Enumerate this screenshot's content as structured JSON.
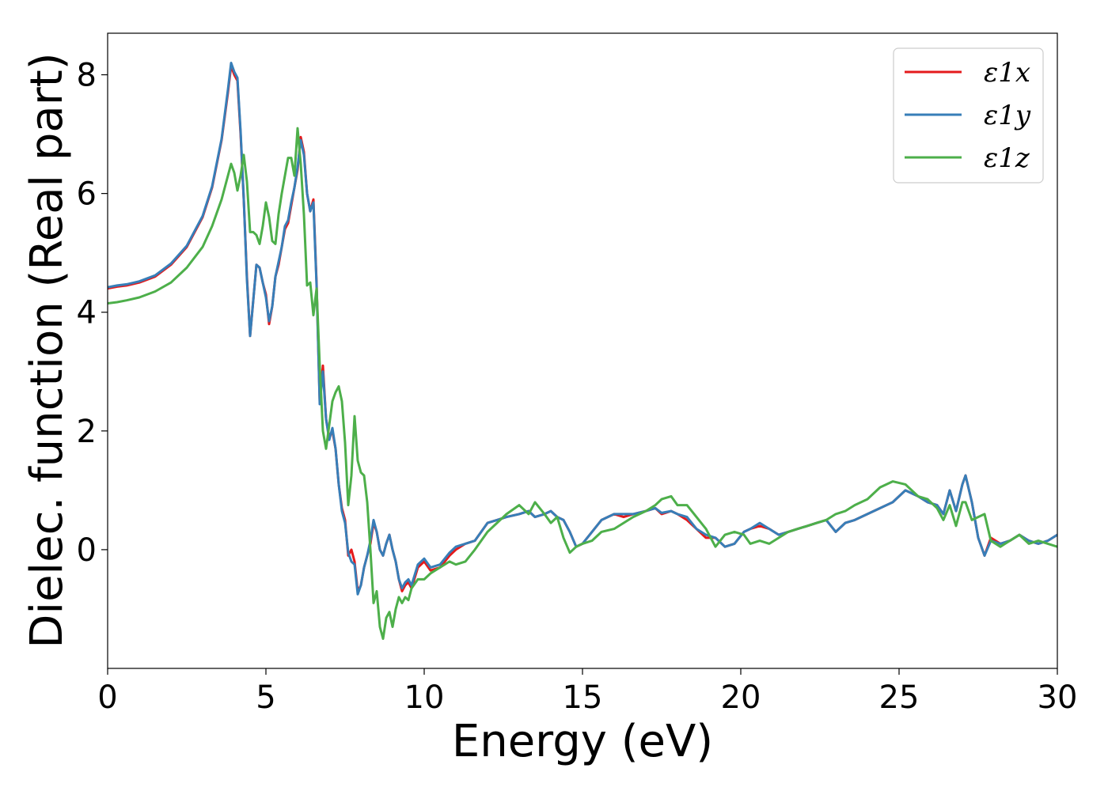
{
  "chart_data": {
    "type": "line",
    "xlabel": "Energy (eV)",
    "ylabel": "Dielec. function (Real part)",
    "xlim": [
      0,
      30
    ],
    "ylim": [
      -2.0,
      8.7
    ],
    "xticks": [
      "0",
      "5",
      "10",
      "15",
      "20",
      "25",
      "30"
    ],
    "yticks": [
      "0",
      "2",
      "4",
      "6",
      "8"
    ],
    "grid": false,
    "legend_position": "top-right",
    "series": [
      {
        "name": "ε1x",
        "color": "#e41a1c",
        "x": [
          0,
          0.3,
          0.6,
          1.0,
          1.5,
          2.0,
          2.5,
          3.0,
          3.3,
          3.6,
          3.8,
          3.9,
          4.0,
          4.1,
          4.2,
          4.3,
          4.4,
          4.5,
          4.6,
          4.7,
          4.8,
          4.9,
          5.0,
          5.1,
          5.2,
          5.3,
          5.4,
          5.5,
          5.6,
          5.7,
          5.8,
          5.9,
          6.0,
          6.1,
          6.2,
          6.3,
          6.4,
          6.5,
          6.6,
          6.7,
          6.8,
          6.9,
          7.0,
          7.1,
          7.2,
          7.3,
          7.4,
          7.5,
          7.6,
          7.7,
          7.8,
          7.9,
          8.0,
          8.1,
          8.2,
          8.3,
          8.4,
          8.5,
          8.6,
          8.7,
          8.8,
          8.9,
          9.0,
          9.1,
          9.2,
          9.3,
          9.4,
          9.5,
          9.6,
          9.8,
          10.0,
          10.2,
          10.5,
          10.8,
          11.0,
          11.3,
          11.6,
          12.0,
          12.3,
          12.6,
          13.0,
          13.3,
          13.5,
          13.8,
          14.0,
          14.2,
          14.4,
          14.6,
          14.8,
          15.0,
          15.3,
          15.6,
          16.0,
          16.3,
          16.6,
          17.0,
          17.3,
          17.5,
          17.8,
          18.0,
          18.3,
          18.6,
          18.9,
          19.2,
          19.5,
          19.8,
          20.1,
          20.3,
          20.6,
          20.9,
          21.2,
          21.5,
          21.8,
          22.1,
          22.4,
          22.7,
          23.0,
          23.3,
          23.6,
          24.0,
          24.4,
          24.8,
          25.2,
          25.6,
          25.9,
          26.2,
          26.4,
          26.6,
          26.8,
          27.0,
          27.1,
          27.3,
          27.5,
          27.7,
          27.9,
          28.2,
          28.5,
          28.8,
          29.1,
          29.4,
          29.7,
          30.0
        ],
        "y": [
          4.4,
          4.43,
          4.45,
          4.5,
          4.6,
          4.8,
          5.1,
          5.6,
          6.1,
          6.9,
          7.7,
          8.15,
          8.0,
          7.9,
          7.0,
          5.9,
          4.6,
          3.6,
          4.2,
          4.8,
          4.75,
          4.5,
          4.3,
          3.8,
          4.1,
          4.6,
          4.8,
          5.1,
          5.4,
          5.5,
          5.8,
          6.1,
          6.4,
          6.95,
          6.7,
          6.0,
          5.7,
          5.9,
          4.5,
          2.5,
          3.1,
          2.2,
          1.9,
          2.0,
          1.7,
          1.1,
          0.7,
          0.5,
          -0.1,
          0.0,
          -0.2,
          -0.7,
          -0.6,
          -0.3,
          -0.1,
          0.1,
          0.45,
          0.3,
          0.0,
          -0.1,
          0.1,
          0.25,
          0.0,
          -0.2,
          -0.5,
          -0.7,
          -0.6,
          -0.55,
          -0.65,
          -0.3,
          -0.2,
          -0.35,
          -0.3,
          -0.1,
          0.0,
          0.1,
          0.15,
          0.45,
          0.5,
          0.55,
          0.6,
          0.65,
          0.55,
          0.6,
          0.65,
          0.55,
          0.5,
          0.3,
          0.05,
          0.1,
          0.3,
          0.5,
          0.6,
          0.55,
          0.6,
          0.65,
          0.7,
          0.6,
          0.65,
          0.6,
          0.5,
          0.35,
          0.2,
          0.2,
          0.05,
          0.1,
          0.3,
          0.35,
          0.4,
          0.35,
          0.25,
          0.3,
          0.35,
          0.4,
          0.45,
          0.5,
          0.3,
          0.45,
          0.5,
          0.6,
          0.7,
          0.8,
          1.0,
          0.9,
          0.8,
          0.75,
          0.6,
          1.0,
          0.65,
          1.1,
          1.25,
          0.8,
          0.2,
          -0.1,
          0.2,
          0.1,
          0.15,
          0.25,
          0.15,
          0.1,
          0.15,
          0.25
        ]
      },
      {
        "name": "ε1y",
        "color": "#377eb8",
        "x": [
          0,
          0.3,
          0.6,
          1.0,
          1.5,
          2.0,
          2.5,
          3.0,
          3.3,
          3.6,
          3.8,
          3.9,
          4.0,
          4.1,
          4.2,
          4.3,
          4.4,
          4.5,
          4.6,
          4.7,
          4.8,
          4.9,
          5.0,
          5.1,
          5.2,
          5.3,
          5.4,
          5.5,
          5.6,
          5.7,
          5.8,
          5.9,
          6.0,
          6.1,
          6.2,
          6.3,
          6.4,
          6.5,
          6.6,
          6.7,
          6.8,
          6.9,
          7.0,
          7.1,
          7.2,
          7.3,
          7.4,
          7.5,
          7.6,
          7.7,
          7.8,
          7.9,
          8.0,
          8.1,
          8.2,
          8.3,
          8.4,
          8.5,
          8.6,
          8.7,
          8.8,
          8.9,
          9.0,
          9.1,
          9.2,
          9.3,
          9.4,
          9.5,
          9.6,
          9.8,
          10.0,
          10.2,
          10.5,
          10.8,
          11.0,
          11.3,
          11.6,
          12.0,
          12.3,
          12.6,
          13.0,
          13.3,
          13.5,
          13.8,
          14.0,
          14.2,
          14.4,
          14.6,
          14.8,
          15.0,
          15.3,
          15.6,
          16.0,
          16.3,
          16.6,
          17.0,
          17.3,
          17.5,
          17.8,
          18.0,
          18.3,
          18.6,
          18.9,
          19.2,
          19.5,
          19.8,
          20.1,
          20.3,
          20.6,
          20.9,
          21.2,
          21.5,
          21.8,
          22.1,
          22.4,
          22.7,
          23.0,
          23.3,
          23.6,
          24.0,
          24.4,
          24.8,
          25.2,
          25.6,
          25.9,
          26.2,
          26.4,
          26.6,
          26.8,
          27.0,
          27.1,
          27.3,
          27.5,
          27.7,
          27.9,
          28.2,
          28.5,
          28.8,
          29.1,
          29.4,
          29.7,
          30.0
        ],
        "y": [
          4.42,
          4.45,
          4.47,
          4.52,
          4.62,
          4.82,
          5.12,
          5.62,
          6.12,
          6.92,
          7.75,
          8.2,
          8.05,
          7.95,
          7.05,
          5.9,
          4.55,
          3.6,
          4.2,
          4.8,
          4.75,
          4.5,
          4.25,
          3.85,
          4.1,
          4.6,
          4.85,
          5.1,
          5.45,
          5.55,
          5.85,
          6.1,
          6.45,
          6.9,
          6.65,
          6.0,
          5.7,
          5.85,
          4.45,
          2.45,
          3.0,
          2.2,
          1.85,
          2.05,
          1.7,
          1.1,
          0.65,
          0.45,
          -0.05,
          -0.2,
          -0.25,
          -0.75,
          -0.6,
          -0.3,
          -0.1,
          0.15,
          0.5,
          0.3,
          0.0,
          -0.1,
          0.1,
          0.25,
          0.0,
          -0.2,
          -0.5,
          -0.65,
          -0.55,
          -0.5,
          -0.6,
          -0.25,
          -0.15,
          -0.3,
          -0.25,
          -0.05,
          0.05,
          0.1,
          0.15,
          0.45,
          0.5,
          0.55,
          0.6,
          0.65,
          0.55,
          0.6,
          0.65,
          0.55,
          0.5,
          0.3,
          0.05,
          0.1,
          0.3,
          0.5,
          0.6,
          0.6,
          0.6,
          0.65,
          0.7,
          0.62,
          0.65,
          0.6,
          0.55,
          0.35,
          0.25,
          0.2,
          0.05,
          0.1,
          0.3,
          0.35,
          0.45,
          0.35,
          0.25,
          0.3,
          0.35,
          0.4,
          0.45,
          0.5,
          0.3,
          0.45,
          0.5,
          0.6,
          0.7,
          0.8,
          1.0,
          0.9,
          0.8,
          0.75,
          0.6,
          1.0,
          0.65,
          1.1,
          1.25,
          0.8,
          0.2,
          -0.1,
          0.15,
          0.1,
          0.15,
          0.25,
          0.15,
          0.1,
          0.15,
          0.25
        ]
      },
      {
        "name": "ε1z",
        "color": "#4daf4a",
        "x": [
          0,
          0.3,
          0.6,
          1.0,
          1.5,
          2.0,
          2.5,
          3.0,
          3.3,
          3.6,
          3.8,
          3.9,
          4.0,
          4.1,
          4.2,
          4.3,
          4.4,
          4.5,
          4.6,
          4.7,
          4.8,
          4.9,
          5.0,
          5.1,
          5.2,
          5.3,
          5.4,
          5.5,
          5.6,
          5.7,
          5.8,
          5.9,
          6.0,
          6.1,
          6.2,
          6.3,
          6.4,
          6.5,
          6.6,
          6.7,
          6.8,
          6.9,
          7.0,
          7.1,
          7.2,
          7.3,
          7.4,
          7.5,
          7.6,
          7.7,
          7.8,
          7.9,
          8.0,
          8.1,
          8.2,
          8.3,
          8.4,
          8.5,
          8.6,
          8.7,
          8.8,
          8.9,
          9.0,
          9.1,
          9.2,
          9.3,
          9.4,
          9.5,
          9.6,
          9.8,
          10.0,
          10.2,
          10.5,
          10.8,
          11.0,
          11.3,
          11.6,
          12.0,
          12.3,
          12.6,
          13.0,
          13.3,
          13.5,
          13.8,
          14.0,
          14.2,
          14.4,
          14.6,
          14.8,
          15.0,
          15.3,
          15.6,
          16.0,
          16.3,
          16.6,
          17.0,
          17.3,
          17.5,
          17.8,
          18.0,
          18.3,
          18.6,
          18.9,
          19.2,
          19.5,
          19.8,
          20.1,
          20.3,
          20.6,
          20.9,
          21.2,
          21.5,
          21.8,
          22.1,
          22.4,
          22.7,
          23.0,
          23.3,
          23.6,
          24.0,
          24.4,
          24.8,
          25.2,
          25.6,
          25.9,
          26.2,
          26.4,
          26.6,
          26.8,
          27.0,
          27.1,
          27.3,
          27.5,
          27.7,
          27.9,
          28.2,
          28.5,
          28.8,
          29.1,
          29.4,
          29.7,
          30.0
        ],
        "y": [
          4.15,
          4.17,
          4.2,
          4.25,
          4.35,
          4.5,
          4.75,
          5.1,
          5.45,
          5.9,
          6.3,
          6.5,
          6.35,
          6.05,
          6.3,
          6.65,
          6.2,
          5.35,
          5.35,
          5.3,
          5.15,
          5.45,
          5.85,
          5.6,
          5.2,
          5.15,
          5.65,
          6.0,
          6.3,
          6.6,
          6.6,
          6.3,
          7.1,
          6.5,
          5.65,
          4.45,
          4.5,
          3.95,
          4.4,
          3.1,
          2.0,
          1.7,
          2.1,
          2.5,
          2.65,
          2.75,
          2.5,
          1.8,
          0.75,
          1.25,
          2.25,
          1.5,
          1.3,
          1.25,
          0.8,
          0.0,
          -0.9,
          -0.7,
          -1.3,
          -1.5,
          -1.15,
          -1.05,
          -1.3,
          -1.0,
          -0.8,
          -0.9,
          -0.8,
          -0.85,
          -0.65,
          -0.5,
          -0.5,
          -0.4,
          -0.3,
          -0.2,
          -0.25,
          -0.2,
          0.0,
          0.3,
          0.45,
          0.6,
          0.75,
          0.6,
          0.8,
          0.6,
          0.45,
          0.55,
          0.2,
          -0.05,
          0.05,
          0.1,
          0.15,
          0.3,
          0.35,
          0.45,
          0.55,
          0.65,
          0.75,
          0.85,
          0.9,
          0.75,
          0.75,
          0.55,
          0.35,
          0.05,
          0.25,
          0.3,
          0.25,
          0.1,
          0.15,
          0.1,
          0.2,
          0.3,
          0.35,
          0.4,
          0.45,
          0.5,
          0.6,
          0.65,
          0.75,
          0.85,
          1.05,
          1.15,
          1.1,
          0.9,
          0.85,
          0.7,
          0.5,
          0.75,
          0.4,
          0.8,
          0.8,
          0.5,
          0.55,
          0.6,
          0.15,
          0.05,
          0.15,
          0.25,
          0.1,
          0.15,
          0.1,
          0.05
        ]
      }
    ]
  }
}
